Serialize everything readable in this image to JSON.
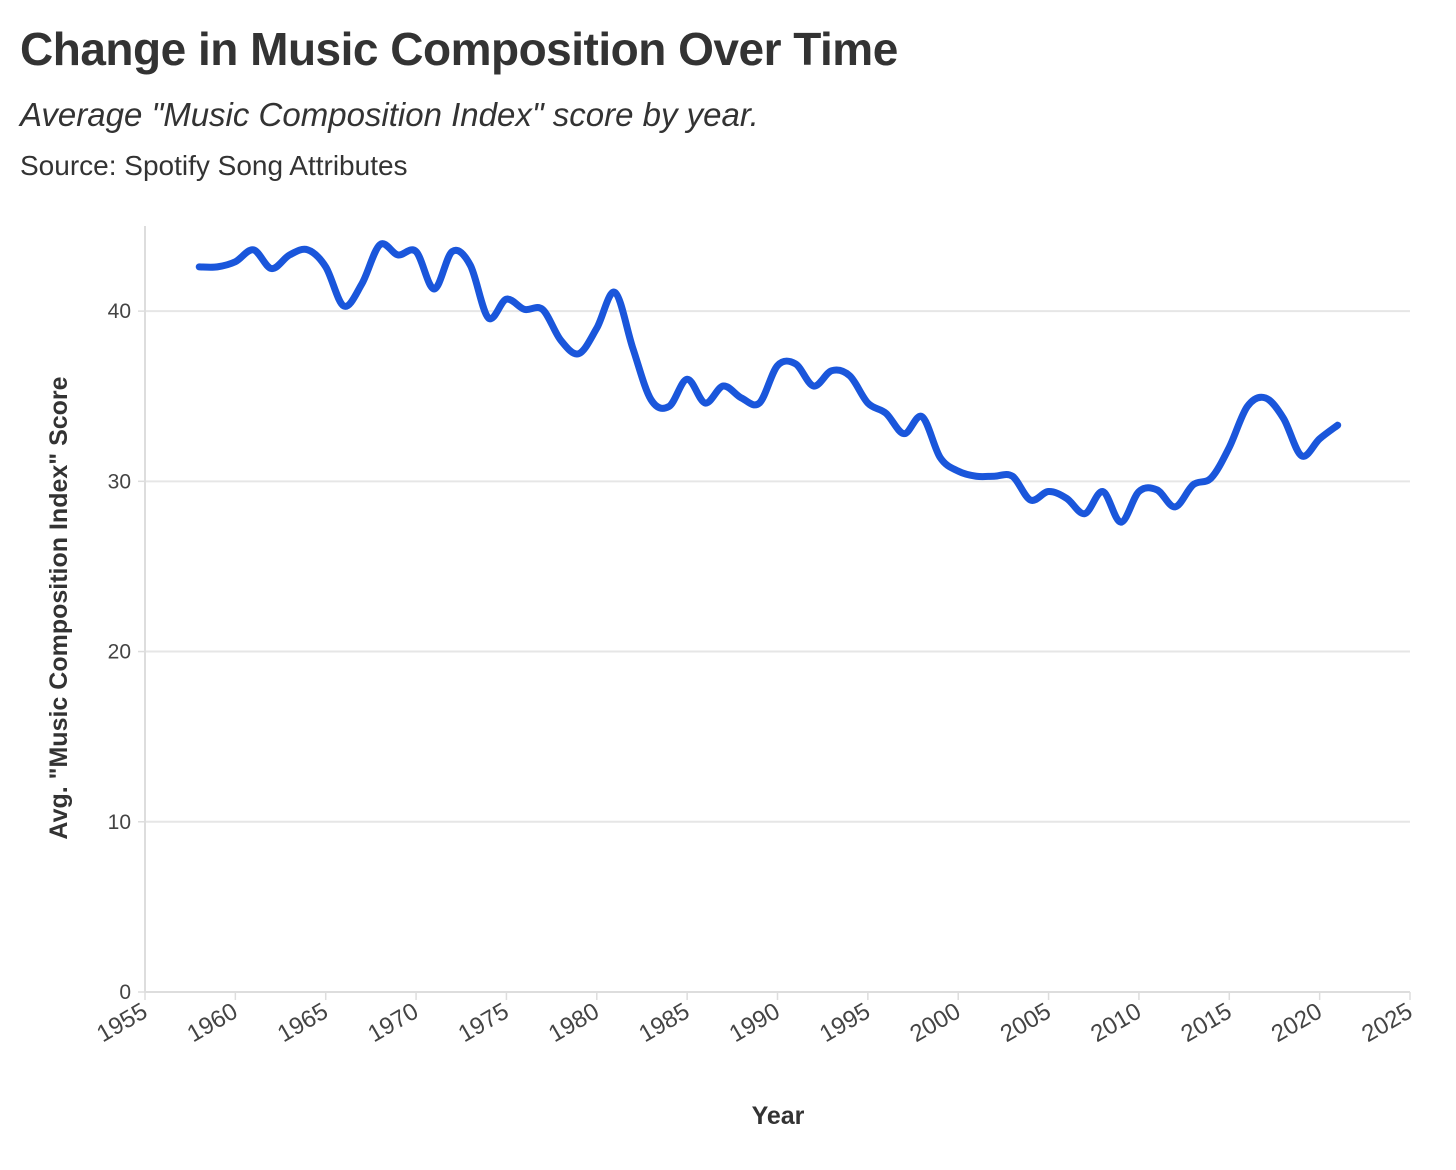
{
  "chart_data": {
    "type": "line",
    "title": "Change in Music Composition Over Time",
    "subtitle": "Average \"Music Composition Index\" score by year.",
    "source": "Source: Spotify Song Attributes",
    "xlabel": "Year",
    "ylabel": "Avg. \"Music Composition Index\" Score",
    "xlim": [
      1955,
      2025
    ],
    "ylim": [
      0,
      45
    ],
    "x_ticks": [
      1955,
      1960,
      1965,
      1970,
      1975,
      1980,
      1985,
      1990,
      1995,
      2000,
      2005,
      2010,
      2015,
      2020,
      2025
    ],
    "y_ticks": [
      0,
      10,
      20,
      30,
      40
    ],
    "grid": "horizontal",
    "series": [
      {
        "color": "#1a56db",
        "x": [
          1958,
          1959,
          1960,
          1961,
          1962,
          1963,
          1964,
          1965,
          1966,
          1967,
          1968,
          1969,
          1970,
          1971,
          1972,
          1973,
          1974,
          1975,
          1976,
          1977,
          1978,
          1979,
          1980,
          1981,
          1982,
          1983,
          1984,
          1985,
          1986,
          1987,
          1988,
          1989,
          1990,
          1991,
          1992,
          1993,
          1994,
          1995,
          1996,
          1997,
          1998,
          1999,
          2000,
          2001,
          2002,
          2003,
          2004,
          2005,
          2006,
          2007,
          2008,
          2009,
          2010,
          2011,
          2012,
          2013,
          2014,
          2015,
          2016,
          2017,
          2018,
          2019,
          2020,
          2021
        ],
        "values": [
          42.6,
          42.6,
          42.9,
          43.6,
          42.5,
          43.3,
          43.6,
          42.6,
          40.3,
          41.6,
          43.9,
          43.3,
          43.5,
          41.3,
          43.5,
          42.7,
          39.6,
          40.7,
          40.1,
          40.1,
          38.3,
          37.5,
          39.0,
          41.1,
          37.8,
          34.8,
          34.4,
          36.0,
          34.6,
          35.6,
          34.9,
          34.6,
          36.8,
          36.9,
          35.6,
          36.5,
          36.2,
          34.6,
          34.0,
          32.8,
          33.8,
          31.4,
          30.6,
          30.3,
          30.3,
          30.3,
          28.9,
          29.4,
          29.0,
          28.1,
          29.4,
          27.6,
          29.4,
          29.5,
          28.5,
          29.8,
          30.2,
          32.0,
          34.4,
          34.9,
          33.7,
          31.5,
          32.5,
          33.3
        ]
      }
    ]
  }
}
